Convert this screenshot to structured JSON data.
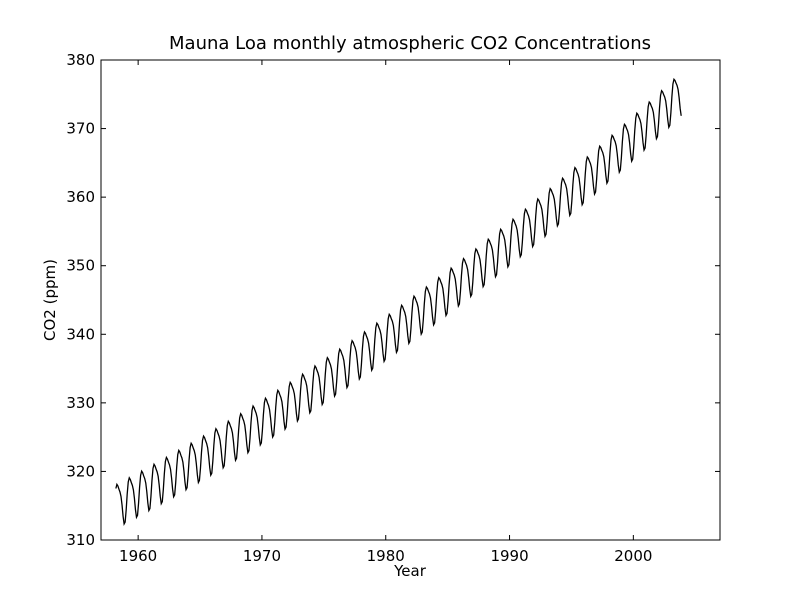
{
  "chart_data": {
    "type": "line",
    "title": "Mauna Loa monthly atmospheric CO2 Concentrations",
    "xlabel": "Year",
    "ylabel": "CO2 (ppm)",
    "xlim": [
      1957,
      2007
    ],
    "ylim": [
      310,
      380
    ],
    "xticks": [
      1960,
      1970,
      1980,
      1990,
      2000
    ],
    "yticks": [
      310,
      320,
      330,
      340,
      350,
      360,
      370,
      380
    ],
    "grid": false,
    "legend": null,
    "series": [
      {
        "name": "CO2",
        "color": "#000000",
        "x_start": 1958.2,
        "x_end": 2003.9,
        "month_step": 0.08333,
        "trend": {
          "start_value": 315.3,
          "end_value": 375.5
        },
        "seasonal_amplitude": 3.0,
        "note": "monthly values with ~6 ppm peak-to-peak seasonal cycle, peaks around May, troughs around October"
      }
    ]
  }
}
